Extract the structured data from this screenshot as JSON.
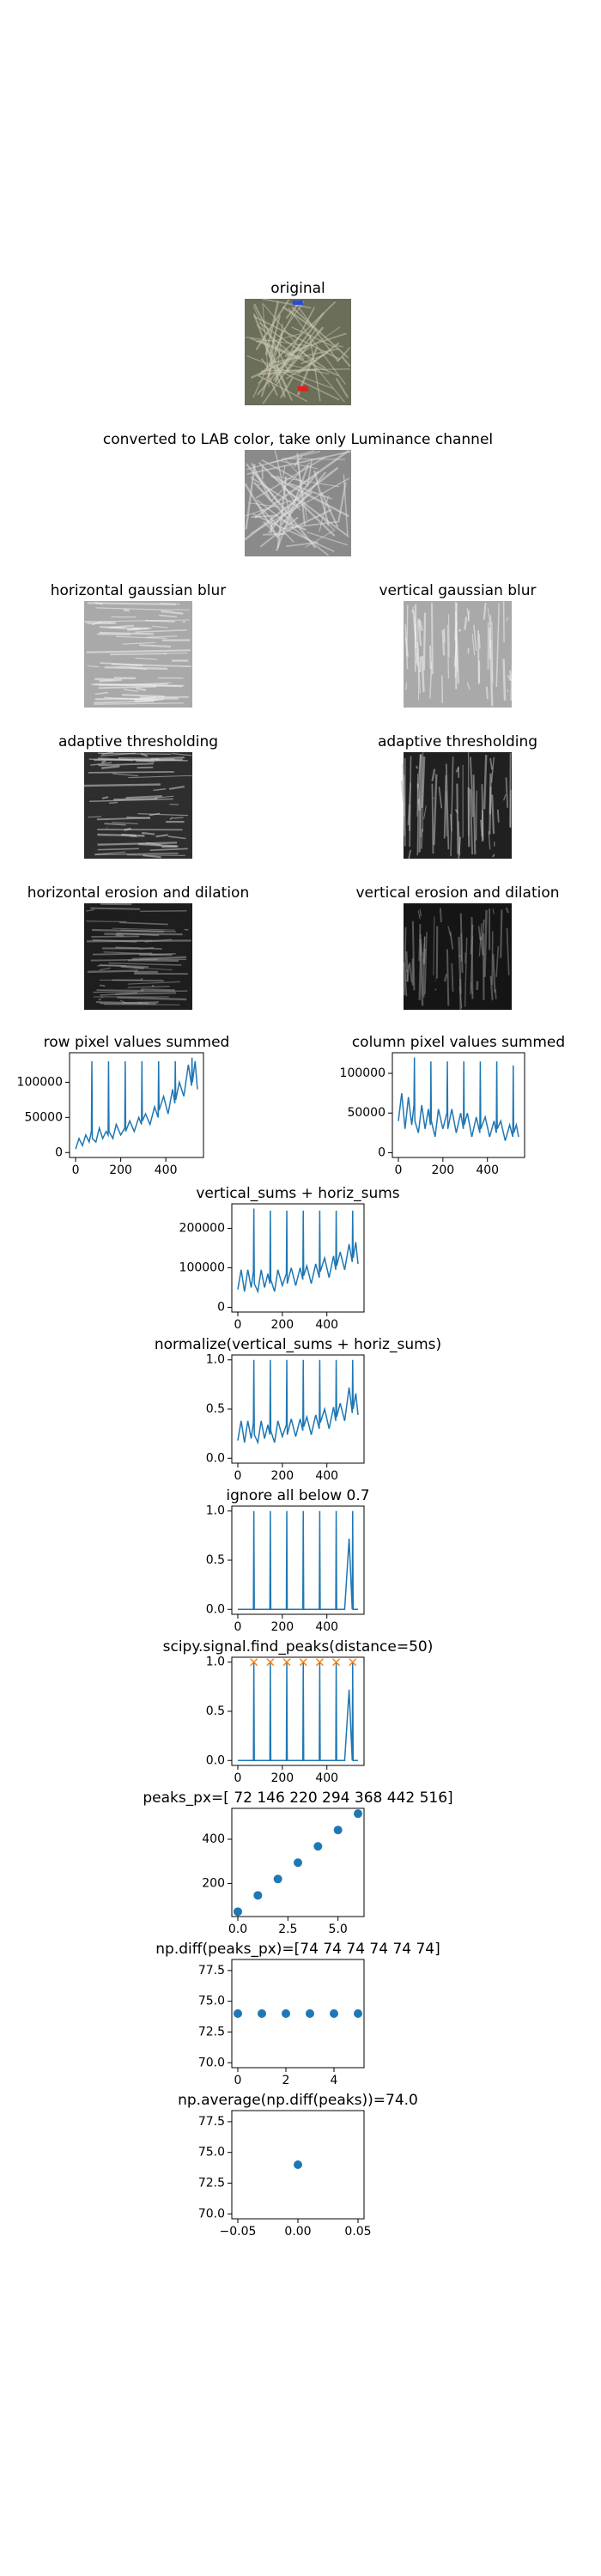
{
  "chart_data": [
    {
      "type": "image",
      "title": "original"
    },
    {
      "type": "image",
      "title": "converted to LAB color, take only Luminance channel"
    },
    {
      "type": "image",
      "title": "horizontal gaussian blur"
    },
    {
      "type": "image",
      "title": "vertical gaussian blur"
    },
    {
      "type": "image",
      "title": "adaptive thresholding"
    },
    {
      "type": "image",
      "title": "adaptive thresholding"
    },
    {
      "type": "image",
      "title": "horizontal erosion and dilation"
    },
    {
      "type": "image",
      "title": "vertical erosion and dilation"
    },
    {
      "type": "line",
      "title": "row pixel values summed",
      "x": [
        0,
        15,
        30,
        45,
        60,
        70,
        72,
        74,
        90,
        105,
        120,
        135,
        144,
        146,
        148,
        165,
        180,
        200,
        218,
        220,
        222,
        240,
        260,
        280,
        292,
        294,
        296,
        310,
        330,
        350,
        366,
        368,
        370,
        390,
        410,
        430,
        440,
        442,
        444,
        460,
        480,
        500,
        514,
        516,
        518,
        530,
        540
      ],
      "series": [
        {
          "color": "#1f77b4",
          "values": [
            5000,
            20000,
            10000,
            25000,
            15000,
            30000,
            130000,
            20000,
            15000,
            35000,
            20000,
            30000,
            25000,
            130000,
            30000,
            20000,
            40000,
            25000,
            35000,
            130000,
            30000,
            45000,
            30000,
            50000,
            40000,
            130000,
            45000,
            55000,
            40000,
            65000,
            50000,
            130000,
            60000,
            80000,
            55000,
            90000,
            70000,
            130000,
            75000,
            100000,
            80000,
            125000,
            95000,
            135000,
            100000,
            130000,
            90000
          ]
        }
      ],
      "xlim": [
        -27,
        567
      ],
      "xticks": [
        0,
        200,
        400
      ],
      "ylim": [
        -7000,
        142000
      ],
      "yticks": [
        0,
        50000,
        100000
      ]
    },
    {
      "type": "line",
      "title": "column pixel values summed",
      "x": [
        0,
        15,
        30,
        45,
        60,
        70,
        72,
        74,
        90,
        105,
        120,
        135,
        144,
        146,
        148,
        165,
        180,
        200,
        218,
        220,
        222,
        240,
        260,
        280,
        292,
        294,
        296,
        310,
        330,
        350,
        366,
        368,
        370,
        390,
        410,
        430,
        440,
        442,
        444,
        460,
        480,
        500,
        514,
        516,
        518,
        530,
        540
      ],
      "series": [
        {
          "color": "#1f77b4",
          "values": [
            40000,
            75000,
            30000,
            70000,
            35000,
            60000,
            120000,
            40000,
            25000,
            60000,
            30000,
            55000,
            35000,
            115000,
            40000,
            20000,
            55000,
            30000,
            50000,
            115000,
            30000,
            55000,
            25000,
            50000,
            30000,
            115000,
            35000,
            50000,
            20000,
            45000,
            25000,
            115000,
            30000,
            45000,
            20000,
            40000,
            25000,
            115000,
            30000,
            40000,
            15000,
            35000,
            20000,
            110000,
            25000,
            35000,
            20000
          ]
        }
      ],
      "xlim": [
        -27,
        567
      ],
      "xticks": [
        0,
        200,
        400
      ],
      "ylim": [
        -6000,
        126000
      ],
      "yticks": [
        0,
        50000,
        100000
      ]
    },
    {
      "type": "line",
      "title": "vertical_sums + horiz_sums",
      "x": [
        0,
        15,
        30,
        45,
        60,
        70,
        72,
        74,
        90,
        105,
        120,
        135,
        144,
        146,
        148,
        165,
        180,
        200,
        218,
        220,
        222,
        240,
        260,
        280,
        292,
        294,
        296,
        310,
        330,
        350,
        366,
        368,
        370,
        390,
        410,
        430,
        440,
        442,
        444,
        460,
        480,
        500,
        514,
        516,
        518,
        530,
        540
      ],
      "series": [
        {
          "color": "#1f77b4",
          "values": [
            45000,
            95000,
            40000,
            95000,
            50000,
            90000,
            250000,
            60000,
            40000,
            95000,
            50000,
            85000,
            60000,
            245000,
            70000,
            40000,
            95000,
            55000,
            85000,
            245000,
            60000,
            100000,
            55000,
            100000,
            70000,
            245000,
            80000,
            105000,
            60000,
            110000,
            75000,
            245000,
            90000,
            125000,
            75000,
            130000,
            95000,
            245000,
            105000,
            140000,
            95000,
            160000,
            115000,
            245000,
            125000,
            165000,
            110000
          ]
        }
      ],
      "xlim": [
        -27,
        567
      ],
      "xticks": [
        0,
        200,
        400
      ],
      "ylim": [
        -12000,
        262000
      ],
      "yticks": [
        0,
        100000,
        200000
      ]
    },
    {
      "type": "line",
      "title": "normalize(vertical_sums + horiz_sums)",
      "x": [
        0,
        15,
        30,
        45,
        60,
        70,
        72,
        74,
        90,
        105,
        120,
        135,
        144,
        146,
        148,
        165,
        180,
        200,
        218,
        220,
        222,
        240,
        260,
        280,
        292,
        294,
        296,
        310,
        330,
        350,
        366,
        368,
        370,
        390,
        410,
        430,
        440,
        442,
        444,
        460,
        480,
        500,
        514,
        516,
        518,
        530,
        540
      ],
      "series": [
        {
          "color": "#1f77b4",
          "values": [
            0.18,
            0.38,
            0.16,
            0.38,
            0.2,
            0.36,
            1.0,
            0.24,
            0.16,
            0.38,
            0.2,
            0.34,
            0.24,
            1.0,
            0.28,
            0.16,
            0.38,
            0.22,
            0.34,
            1.0,
            0.24,
            0.4,
            0.22,
            0.4,
            0.28,
            1.0,
            0.32,
            0.42,
            0.24,
            0.44,
            0.3,
            1.0,
            0.36,
            0.5,
            0.3,
            0.52,
            0.38,
            1.0,
            0.42,
            0.56,
            0.38,
            0.72,
            0.46,
            1.0,
            0.5,
            0.66,
            0.44
          ]
        }
      ],
      "xlim": [
        -27,
        567
      ],
      "xticks": [
        0,
        200,
        400
      ],
      "ylim": [
        -0.05,
        1.05
      ],
      "yticks": [
        {
          "value": 0,
          "label": "0.0"
        },
        0.5,
        {
          "value": 1,
          "label": "1.0"
        }
      ]
    },
    {
      "type": "line",
      "title": "ignore all below 0.7",
      "x": [
        0,
        15,
        30,
        45,
        60,
        70,
        72,
        74,
        90,
        105,
        120,
        135,
        144,
        146,
        148,
        165,
        180,
        200,
        218,
        220,
        222,
        240,
        260,
        280,
        292,
        294,
        296,
        310,
        330,
        350,
        366,
        368,
        370,
        390,
        410,
        430,
        440,
        442,
        444,
        460,
        480,
        500,
        514,
        516,
        518,
        530,
        540
      ],
      "series": [
        {
          "color": "#1f77b4",
          "values": [
            0,
            0,
            0,
            0,
            0,
            0,
            1.0,
            0,
            0,
            0,
            0,
            0,
            0,
            1.0,
            0,
            0,
            0,
            0,
            0,
            1.0,
            0,
            0,
            0,
            0,
            0,
            1.0,
            0,
            0,
            0,
            0,
            0,
            1.0,
            0,
            0,
            0,
            0,
            0,
            1.0,
            0,
            0,
            0,
            0.72,
            0,
            1.0,
            0,
            0,
            0
          ]
        }
      ],
      "xlim": [
        -27,
        567
      ],
      "xticks": [
        0,
        200,
        400
      ],
      "ylim": [
        -0.05,
        1.05
      ],
      "yticks": [
        {
          "value": 0,
          "label": "0.0"
        },
        0.5,
        {
          "value": 1,
          "label": "1.0"
        }
      ]
    },
    {
      "type": "line",
      "title": "scipy.signal.find_peaks(distance=50)",
      "x": [
        0,
        15,
        30,
        45,
        60,
        70,
        72,
        74,
        90,
        105,
        120,
        135,
        144,
        146,
        148,
        165,
        180,
        200,
        218,
        220,
        222,
        240,
        260,
        280,
        292,
        294,
        296,
        310,
        330,
        350,
        366,
        368,
        370,
        390,
        410,
        430,
        440,
        442,
        444,
        460,
        480,
        500,
        514,
        516,
        518,
        530,
        540
      ],
      "series": [
        {
          "color": "#1f77b4",
          "values": [
            0,
            0,
            0,
            0,
            0,
            0,
            1.0,
            0,
            0,
            0,
            0,
            0,
            0,
            1.0,
            0,
            0,
            0,
            0,
            0,
            1.0,
            0,
            0,
            0,
            0,
            0,
            1.0,
            0,
            0,
            0,
            0,
            0,
            1.0,
            0,
            0,
            0,
            0,
            0,
            1.0,
            0,
            0,
            0,
            0.72,
            0,
            1.0,
            0,
            0,
            0
          ]
        }
      ],
      "markers": {
        "color": "#ff7f0e",
        "x": [
          72,
          146,
          220,
          294,
          368,
          442,
          516
        ],
        "values": [
          1.0,
          1.0,
          1.0,
          1.0,
          1.0,
          1.0,
          1.0
        ]
      },
      "xlim": [
        -27,
        567
      ],
      "xticks": [
        0,
        200,
        400
      ],
      "ylim": [
        -0.05,
        1.05
      ],
      "yticks": [
        {
          "value": 0,
          "label": "0.0"
        },
        0.5,
        {
          "value": 1,
          "label": "1.0"
        }
      ]
    },
    {
      "type": "scatter",
      "title": "peaks_px=[ 72 146 220 294 368 442 516]",
      "color": "#1f77b4",
      "x": [
        0,
        1,
        2,
        3,
        4,
        5,
        6
      ],
      "values": [
        72,
        146,
        220,
        294,
        368,
        442,
        516
      ],
      "xlim": [
        -0.3,
        6.3
      ],
      "xticks": [
        {
          "value": 0,
          "label": "0.0"
        },
        2.5,
        {
          "value": 5,
          "label": "5.0"
        }
      ],
      "ylim": [
        50,
        540
      ],
      "yticks": [
        200,
        400
      ]
    },
    {
      "type": "scatter",
      "title": "np.diff(peaks_px)=[74 74 74 74 74 74]",
      "color": "#1f77b4",
      "x": [
        0,
        1,
        2,
        3,
        4,
        5
      ],
      "values": [
        74,
        74,
        74,
        74,
        74,
        74
      ],
      "xlim": [
        -0.25,
        5.25
      ],
      "xticks": [
        0,
        2,
        4
      ],
      "ylim": [
        69.6,
        78.4
      ],
      "yticks": [
        {
          "value": 70,
          "label": "70.0"
        },
        72.5,
        {
          "value": 75,
          "label": "75.0"
        },
        77.5
      ]
    },
    {
      "type": "scatter",
      "title": "np.average(np.diff(peaks))=74.0",
      "color": "#1f77b4",
      "x": [
        0
      ],
      "values": [
        74
      ],
      "xlim": [
        -0.055,
        0.055
      ],
      "xticks": [
        {
          "value": -0.05,
          "label": "−0.05"
        },
        {
          "value": 0,
          "label": "0.00"
        },
        0.05
      ],
      "ylim": [
        69.6,
        78.4
      ],
      "yticks": [
        {
          "value": 70,
          "label": "70.0"
        },
        72.5,
        {
          "value": 75,
          "label": "75.0"
        },
        77.5
      ]
    }
  ]
}
